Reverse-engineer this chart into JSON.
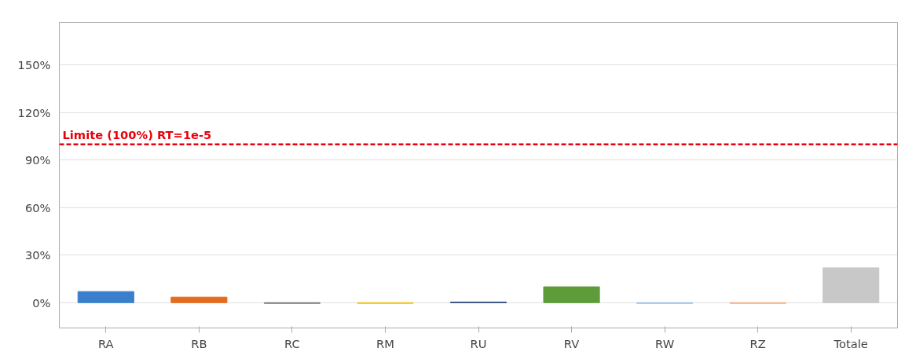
{
  "chart_data": {
    "type": "bar",
    "categories": [
      "RA",
      "RB",
      "RC",
      "RM",
      "RU",
      "RV",
      "RW",
      "RZ",
      "Totale"
    ],
    "values": [
      7,
      3.5,
      -0.5,
      -0.5,
      0.3,
      10,
      -0.5,
      -0.5,
      22
    ],
    "colors": [
      "#3a7fcc",
      "#e46c1e",
      "#7f7f7f",
      "#f2c314",
      "#264478",
      "#5e9c3a",
      "#9dc3e6",
      "#f4b183",
      "#c8c8c8"
    ],
    "ylim": [
      -16,
      177
    ],
    "yticks": [
      {
        "value": 0,
        "label": "0%"
      },
      {
        "value": 30,
        "label": "30%"
      },
      {
        "value": 60,
        "label": "60%"
      },
      {
        "value": 90,
        "label": "90%"
      },
      {
        "value": 120,
        "label": "120%"
      },
      {
        "value": 150,
        "label": "150%"
      }
    ],
    "grid": "y",
    "ref_lines": [
      {
        "axis": "y",
        "value": 100,
        "label": "Limite (100%) RT=1e-5",
        "color": "#e8000b",
        "line_style": "dashed"
      }
    ]
  }
}
